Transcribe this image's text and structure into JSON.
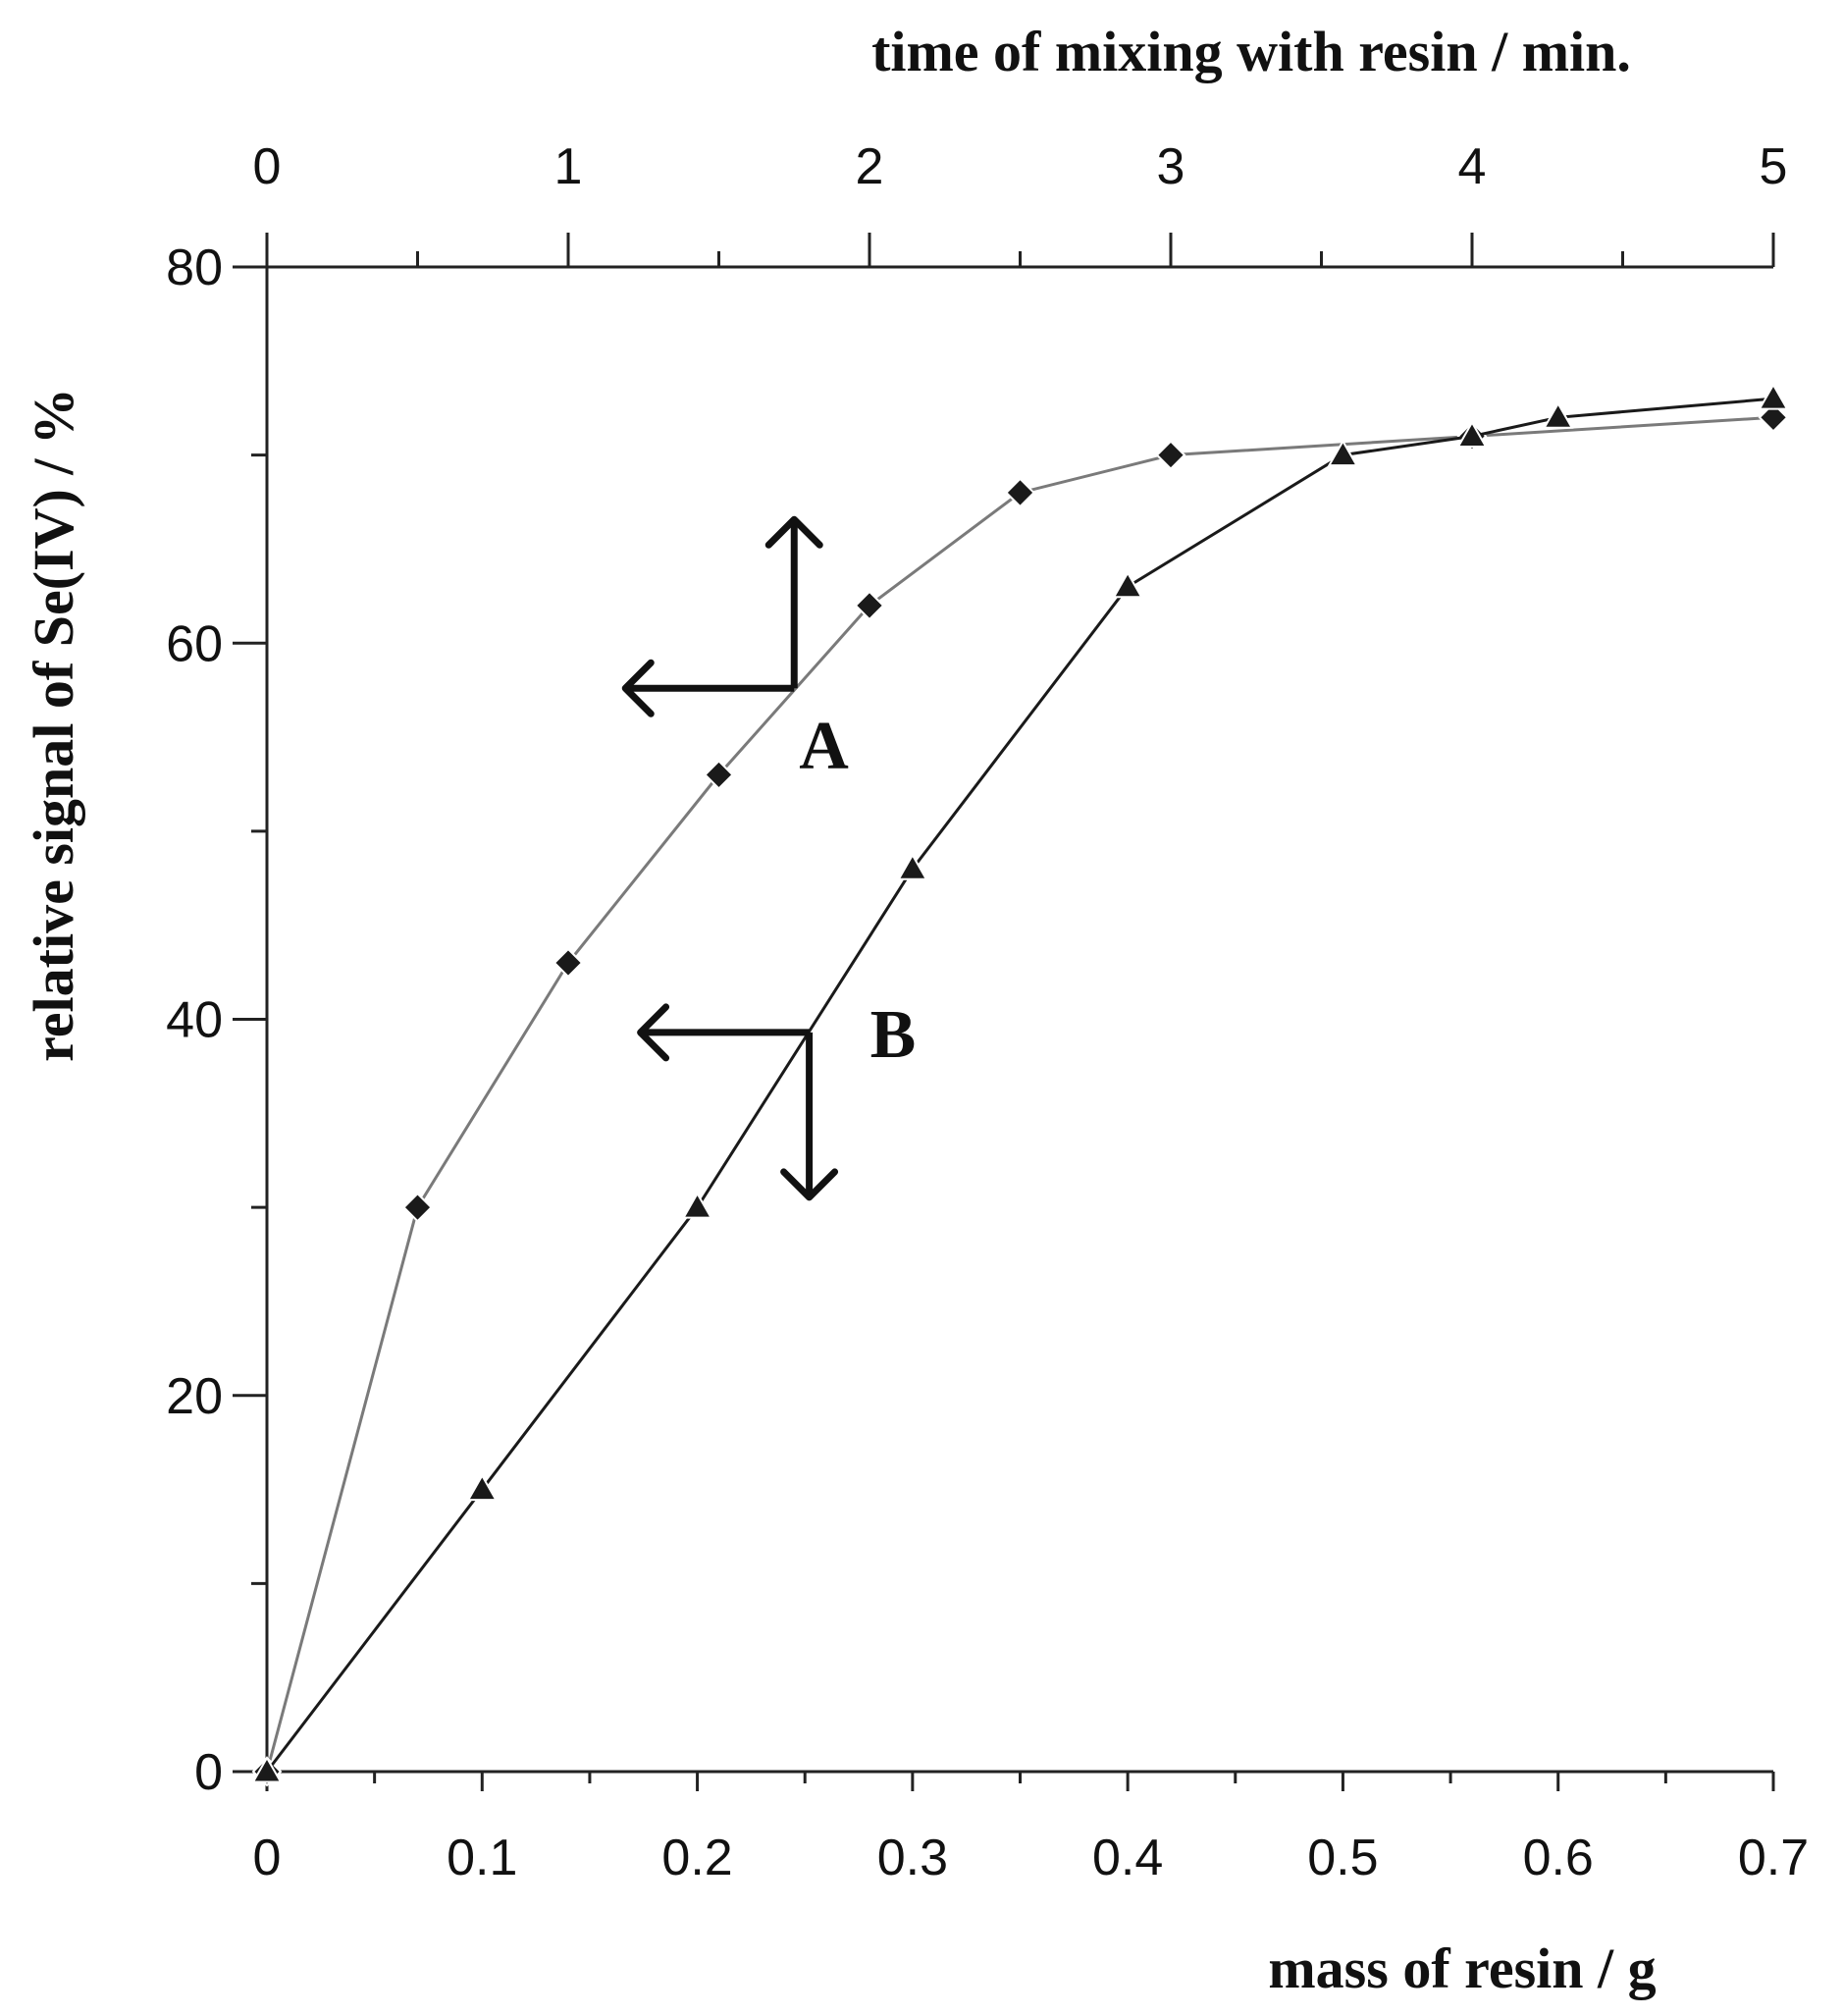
{
  "chart_data": {
    "type": "line",
    "top_axis": {
      "label": "time of mixing with resin / min.",
      "range": [
        0,
        5
      ],
      "ticks": [
        "0",
        "1",
        "2",
        "3",
        "4",
        "5"
      ]
    },
    "bottom_axis": {
      "label": "mass of resin / g",
      "range": [
        0,
        0.7
      ],
      "ticks": [
        "0",
        "0.1",
        "0.2",
        "0.3",
        "0.4",
        "0.5",
        "0.6",
        "0.7"
      ]
    },
    "y_axis": {
      "label": "relative signal of Se(IV) / %",
      "range": [
        0,
        80
      ],
      "ticks": [
        "0",
        "20",
        "40",
        "60",
        "80"
      ]
    },
    "grid": false,
    "series": [
      {
        "name": "A",
        "x_axis": "top",
        "marker": "diamond",
        "color": "#7a7a7a",
        "x": [
          0,
          0.5,
          1,
          1.5,
          2,
          2.5,
          3,
          4,
          5
        ],
        "y": [
          0,
          30,
          43,
          53,
          62,
          68,
          70,
          71,
          72
        ]
      },
      {
        "name": "B",
        "x_axis": "bottom",
        "marker": "triangle",
        "color": "#1a1a1a",
        "x": [
          0,
          0.1,
          0.2,
          0.3,
          0.4,
          0.5,
          0.56,
          0.6,
          0.7
        ],
        "y": [
          0,
          15,
          30,
          48,
          63,
          70,
          71,
          72,
          73
        ]
      }
    ]
  }
}
